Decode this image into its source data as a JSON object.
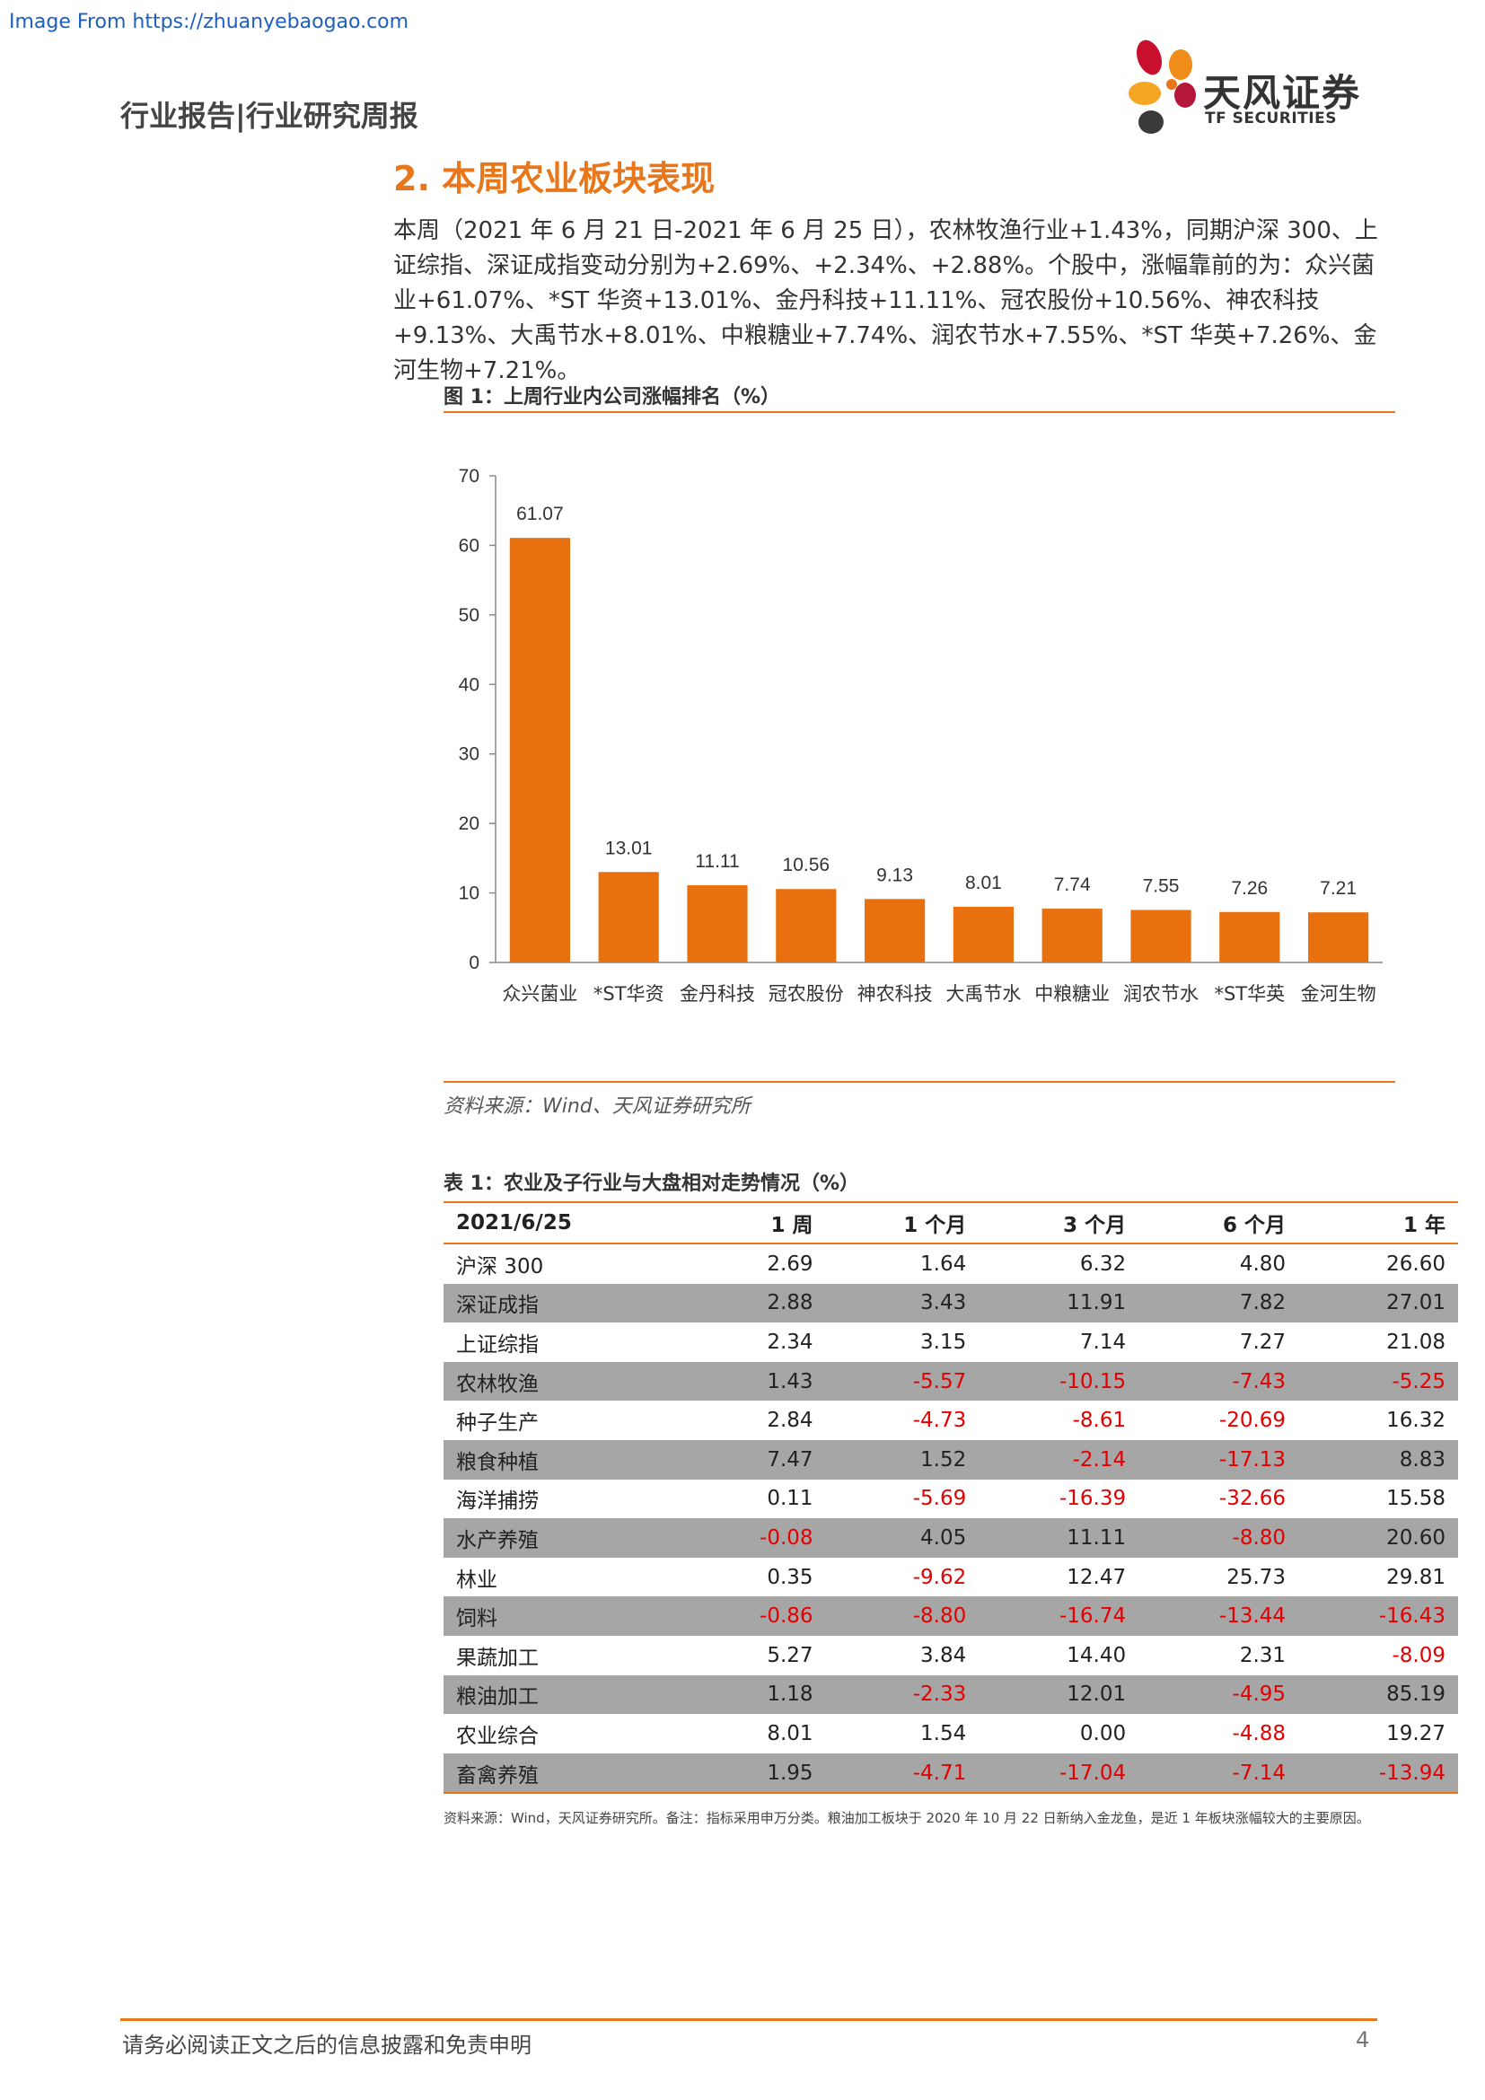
{
  "watermark": "Image From https://zhuanyebaogao.com",
  "header": {
    "title": "行业报告|行业研究周报",
    "logo_cn": "天风证券",
    "logo_en": "TF SECURITIES"
  },
  "section_title": "2. 本周农业板块表现",
  "intro": "本周（2021 年 6 月 21 日-2021 年 6 月 25 日），农林牧渔行业+1.43%，同期沪深 300、上证综指、深证成指变动分别为+2.69%、+2.34%、+2.88%。个股中，涨幅靠前的为：众兴菌业+61.07%、*ST 华资+13.01%、金丹科技+11.11%、冠农股份+10.56%、神农科技+9.13%、大禹节水+8.01%、中粮糖业+7.74%、润农节水+7.55%、*ST 华英+7.26%、金河生物+7.21%。",
  "figure": {
    "caption": "图 1：上周行业内公司涨幅排名（%）",
    "source": "资料来源：Wind、天风证券研究所"
  },
  "chart_data": {
    "type": "bar",
    "title": "图 1：上周行业内公司涨幅排名（%）",
    "categories": [
      "众兴菌业",
      "*ST华资",
      "金丹科技",
      "冠农股份",
      "神农科技",
      "大禹节水",
      "中粮糖业",
      "润农节水",
      "*ST华英",
      "金河生物"
    ],
    "values": [
      61.07,
      13.01,
      11.11,
      10.56,
      9.13,
      8.01,
      7.74,
      7.55,
      7.26,
      7.21
    ],
    "value_labels": [
      "61.07",
      "13.01",
      "11.11",
      "10.56",
      "9.13",
      "8.01",
      "7.74",
      "7.55",
      "7.26",
      "7.21"
    ],
    "ylim": [
      0,
      70
    ],
    "yticks": [
      "0",
      "10",
      "20",
      "30",
      "40",
      "50",
      "60",
      "70"
    ],
    "grid": false,
    "bar_color": "#e8700f"
  },
  "table": {
    "caption": "表 1：农业及子行业与大盘相对走势情况（%）",
    "headers": [
      "2021/6/25",
      "1 周",
      "1 个月",
      "3 个月",
      "6 个月",
      "1 年"
    ],
    "rows": [
      [
        "沪深 300",
        "2.69",
        "1.64",
        "6.32",
        "4.80",
        "26.60"
      ],
      [
        "深证成指",
        "2.88",
        "3.43",
        "11.91",
        "7.82",
        "27.01"
      ],
      [
        "上证综指",
        "2.34",
        "3.15",
        "7.14",
        "7.27",
        "21.08"
      ],
      [
        "农林牧渔",
        "1.43",
        "-5.57",
        "-10.15",
        "-7.43",
        "-5.25"
      ],
      [
        "种子生产",
        "2.84",
        "-4.73",
        "-8.61",
        "-20.69",
        "16.32"
      ],
      [
        "粮食种植",
        "7.47",
        "1.52",
        "-2.14",
        "-17.13",
        "8.83"
      ],
      [
        "海洋捕捞",
        "0.11",
        "-5.69",
        "-16.39",
        "-32.66",
        "15.58"
      ],
      [
        "水产养殖",
        "-0.08",
        "4.05",
        "11.11",
        "-8.80",
        "20.60"
      ],
      [
        "林业",
        "0.35",
        "-9.62",
        "12.47",
        "25.73",
        "29.81"
      ],
      [
        "饲料",
        "-0.86",
        "-8.80",
        "-16.74",
        "-13.44",
        "-16.43"
      ],
      [
        "果蔬加工",
        "5.27",
        "3.84",
        "14.40",
        "2.31",
        "-8.09"
      ],
      [
        "粮油加工",
        "1.18",
        "-2.33",
        "12.01",
        "-4.95",
        "85.19"
      ],
      [
        "农业综合",
        "8.01",
        "1.54",
        "0.00",
        "-4.88",
        "19.27"
      ],
      [
        "畜禽养殖",
        "1.95",
        "-4.71",
        "-17.04",
        "-7.14",
        "-13.94"
      ]
    ],
    "source": "资料来源：Wind，天风证券研究所。备注：指标采用申万分类。粮油加工板块于 2020 年 10 月 22 日新纳入金龙鱼，是近 1 年板块涨幅较大的主要原因。"
  },
  "footer": {
    "disclaimer": "请务必阅读正文之后的信息披露和免责申明",
    "page_number": "4"
  },
  "colors": {
    "accent": "#e8761a",
    "negative": "#e30000",
    "row_shade": "#a6a6a6"
  }
}
